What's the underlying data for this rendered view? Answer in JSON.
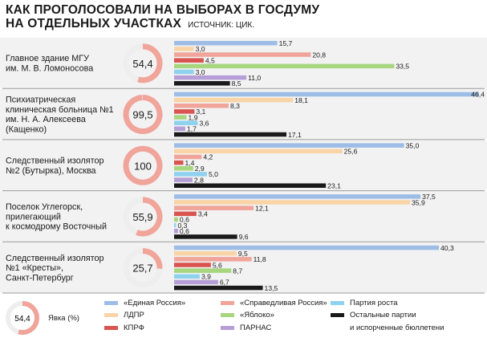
{
  "title_line1": "КАК ПРОГОЛОСОВАЛИ НА ВЫБОРАХ В ГОСДУМУ",
  "title_line2": "НА ОТДЕЛЬНЫХ УЧАСТКАХ",
  "source": "ИСТОЧНИК: ЦИК.",
  "colors": {
    "ed_ros": "#9dbde6",
    "ldpr": "#f9d4a6",
    "kprf": "#d9534f",
    "yabloko": "#a7d67f",
    "parnas": "#b69fd6",
    "rost": "#8ed2ef",
    "other": "#1a1a1a",
    "ring": "#f0a49a",
    "ring_bg": "#eeeeee",
    "panel_bg": "#f2f2f2",
    "divider": "#9a9a9a"
  },
  "chart_data": {
    "type": "bar",
    "series": [
      {
        "name": "«Единая Россия»",
        "color_key": "ed_ros"
      },
      {
        "name": "ЛДПР",
        "color_key": "ldpr"
      },
      {
        "name": "КПРФ",
        "color_key": "kprf"
      },
      {
        "name": "«Справедливая Россия»",
        "color_key": "sr"
      },
      {
        "name": "«Яблоко»",
        "color_key": "yabloko"
      },
      {
        "name": "ПАРНАС",
        "color_key": "parnas"
      },
      {
        "name": "Партия роста",
        "color_key": "rost"
      },
      {
        "name": "Остальные партии и испорченные бюллетени",
        "color_key": "other"
      }
    ],
    "bar_order": [
      "«Единая Россия»",
      "ЛДПР",
      "«Справедливая Россия»",
      "КПРФ",
      "«Яблоко»",
      "Партия роста",
      "ПАРНАС",
      "Остальные партии и испорченные бюллетени"
    ],
    "groups": [
      {
        "label_lines": [
          "Главное здание МГУ",
          "им. М. В. Ломоносова"
        ],
        "turnout": 54.4,
        "turnout_label": "54,4",
        "values": [
          15.7,
          3.0,
          20.8,
          4.5,
          33.5,
          3.0,
          11.0,
          8.5
        ],
        "value_labels": [
          "15,7",
          "3,0",
          "20,8",
          "4,5",
          "33,5",
          "3,0",
          "11,0",
          "8,5"
        ]
      },
      {
        "label_lines": [
          "Психиатрическая",
          "клиническая больница №1",
          "им. Н. А. Алексеева",
          "(Кащенко)"
        ],
        "turnout": 99.5,
        "turnout_label": "99,5",
        "values": [
          46.4,
          18.1,
          8.3,
          3.1,
          1.9,
          3.6,
          1.7,
          17.1
        ],
        "value_labels": [
          "46,4",
          "18,1",
          "8,3",
          "3,1",
          "1,9",
          "3,6",
          "1,7",
          "17,1"
        ]
      },
      {
        "label_lines": [
          "Следственный изолятор",
          "№2 (Бутырка), Москва"
        ],
        "turnout": 100,
        "turnout_label": "100",
        "values": [
          35.0,
          25.6,
          4.2,
          1.4,
          2.9,
          5.0,
          2.8,
          23.1
        ],
        "value_labels": [
          "35,0",
          "25,6",
          "4,2",
          "1,4",
          "2,9",
          "5,0",
          "2,8",
          "23,1"
        ]
      },
      {
        "label_lines": [
          "Поселок Углегорск,",
          "прилегающий",
          "к космодрому Восточный"
        ],
        "turnout": 55.9,
        "turnout_label": "55,9",
        "values": [
          37.5,
          35.9,
          12.1,
          3.4,
          0.6,
          0.3,
          0.6,
          9.6
        ],
        "value_labels": [
          "37,5",
          "35,9",
          "12,1",
          "3,4",
          "0,6",
          "0,3",
          "0,6",
          "9,6"
        ]
      },
      {
        "label_lines": [
          "Следственный изолятор",
          "№1 «Кресты»,",
          "Санкт-Петербург"
        ],
        "turnout": 25.7,
        "turnout_label": "25,7",
        "values": [
          40.3,
          9.5,
          11.8,
          5.6,
          8.7,
          3.9,
          6.7,
          13.5
        ],
        "value_labels": [
          "40,3",
          "9,5",
          "11,8",
          "5,6",
          "8,7",
          "3,9",
          "6,7",
          "13,5"
        ]
      }
    ],
    "xlim": [
      0,
      46.4
    ]
  },
  "legend": {
    "turnout_sample": "54,4",
    "turnout_label": "Явка (%)",
    "items": [
      {
        "label": "«Единая Россия»",
        "color_key": "ed_ros",
        "lines": [
          "«Единая Россия»"
        ]
      },
      {
        "label": "ЛДПР",
        "color_key": "ldpr",
        "lines": [
          "ЛДПР"
        ]
      },
      {
        "label": "КПРФ",
        "color_key": "kprf",
        "lines": [
          "КПРФ"
        ]
      },
      {
        "label": "«Справедливая Россия»",
        "color_key": "sr",
        "lines": [
          "«Справедливая Россия»"
        ]
      },
      {
        "label": "«Яблоко»",
        "color_key": "yabloko",
        "lines": [
          "«Яблоко»"
        ]
      },
      {
        "label": "ПАРНАС",
        "color_key": "parnas",
        "lines": [
          "ПАРНАС"
        ]
      },
      {
        "label": "Партия роста",
        "color_key": "rost",
        "lines": [
          "Партия роста"
        ]
      },
      {
        "label": "Остальные партии и испорченные бюллетени",
        "color_key": "other",
        "lines": [
          "Остальные партии",
          "и испорченные бюллетени"
        ]
      }
    ]
  }
}
